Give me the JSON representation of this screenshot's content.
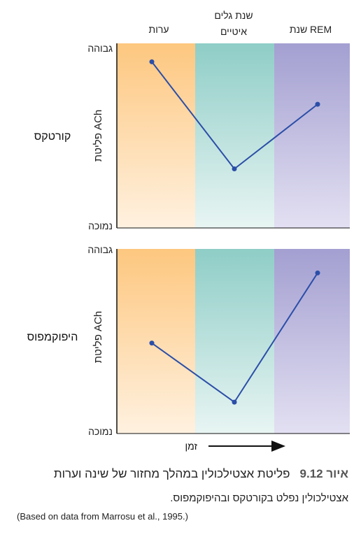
{
  "stages": [
    "ערות",
    "שנת גלים",
    "איטיים",
    "שנת REM"
  ],
  "y_high_label": "גבוהה",
  "y_low_label": "נמוכה",
  "ylabel": "פליטת ACh",
  "x_axis_label": "זמן",
  "colors": {
    "wake": "#fdc77f",
    "sws": "#8fcdc7",
    "rem": "#a39fd1",
    "line": "#2b4ea8"
  },
  "caption": {
    "figure_number": "איור 9.12",
    "title": "פליטת אצטילכולין במהלך מחזור של שינה וערות",
    "subtitle": "אצטילכולין נפלט בקורטקס ובהיפוקמפוס.",
    "source": "(Based on data from Marrosu et al., 1995.)"
  },
  "chart_data": [
    {
      "type": "line",
      "panel_label": "קורטקס",
      "categories": [
        "ערות",
        "שנת גלים איטיים",
        "שנת REM"
      ],
      "values": [
        0.9,
        0.32,
        0.67
      ],
      "ylim": [
        0,
        1
      ]
    },
    {
      "type": "line",
      "panel_label": "היפוקמפוס",
      "categories": [
        "ערות",
        "שנת גלים איטיים",
        "שנת REM"
      ],
      "values": [
        0.49,
        0.17,
        0.87
      ],
      "ylim": [
        0,
        1
      ]
    }
  ]
}
